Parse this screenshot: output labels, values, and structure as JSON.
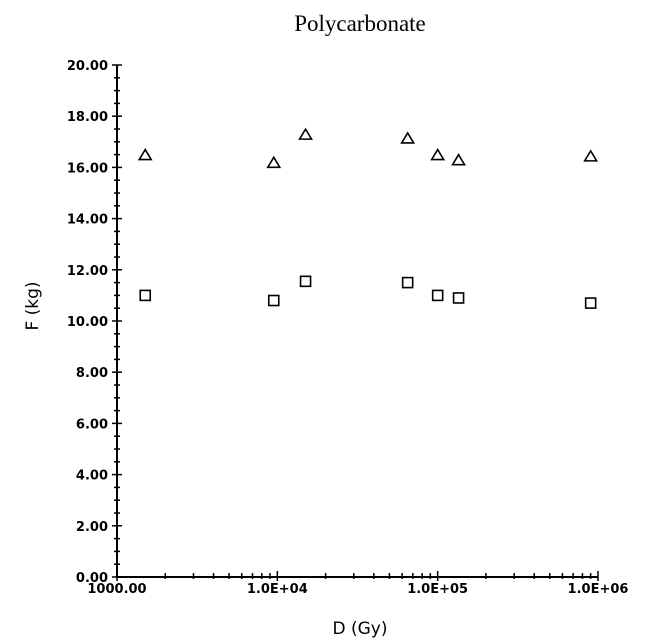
{
  "chart_data": {
    "type": "scatter",
    "title": "Polycarbonate",
    "xlabel": "D (Gy)",
    "ylabel": "F (kg)",
    "x_scale": "log",
    "xlim": [
      1000,
      1000000
    ],
    "ylim": [
      0,
      20
    ],
    "x_ticks": [
      {
        "value": 1000,
        "label": "1000.00"
      },
      {
        "value": 10000,
        "label": "1.0E+04"
      },
      {
        "value": 100000,
        "label": "1.0E+05"
      },
      {
        "value": 1000000,
        "label": "1.0E+06"
      }
    ],
    "y_ticks": [
      {
        "value": 0,
        "label": "0.00"
      },
      {
        "value": 2,
        "label": "2.00"
      },
      {
        "value": 4,
        "label": "4.00"
      },
      {
        "value": 6,
        "label": "6.00"
      },
      {
        "value": 8,
        "label": "8.00"
      },
      {
        "value": 10,
        "label": "10.00"
      },
      {
        "value": 12,
        "label": "12.00"
      },
      {
        "value": 14,
        "label": "14.00"
      },
      {
        "value": 16,
        "label": "16.00"
      },
      {
        "value": 18,
        "label": "18.00"
      },
      {
        "value": 20,
        "label": "20.00"
      }
    ],
    "grid": false,
    "series": [
      {
        "marker": "triangle",
        "x": [
          1500,
          9500,
          15000,
          65000,
          100000,
          135000,
          900000
        ],
        "y": [
          16.5,
          16.2,
          17.3,
          17.15,
          16.5,
          16.3,
          16.45
        ]
      },
      {
        "marker": "square",
        "x": [
          1500,
          9500,
          15000,
          65000,
          100000,
          135000,
          900000
        ],
        "y": [
          11.0,
          10.8,
          11.55,
          11.5,
          11.0,
          10.9,
          10.7
        ]
      }
    ]
  }
}
